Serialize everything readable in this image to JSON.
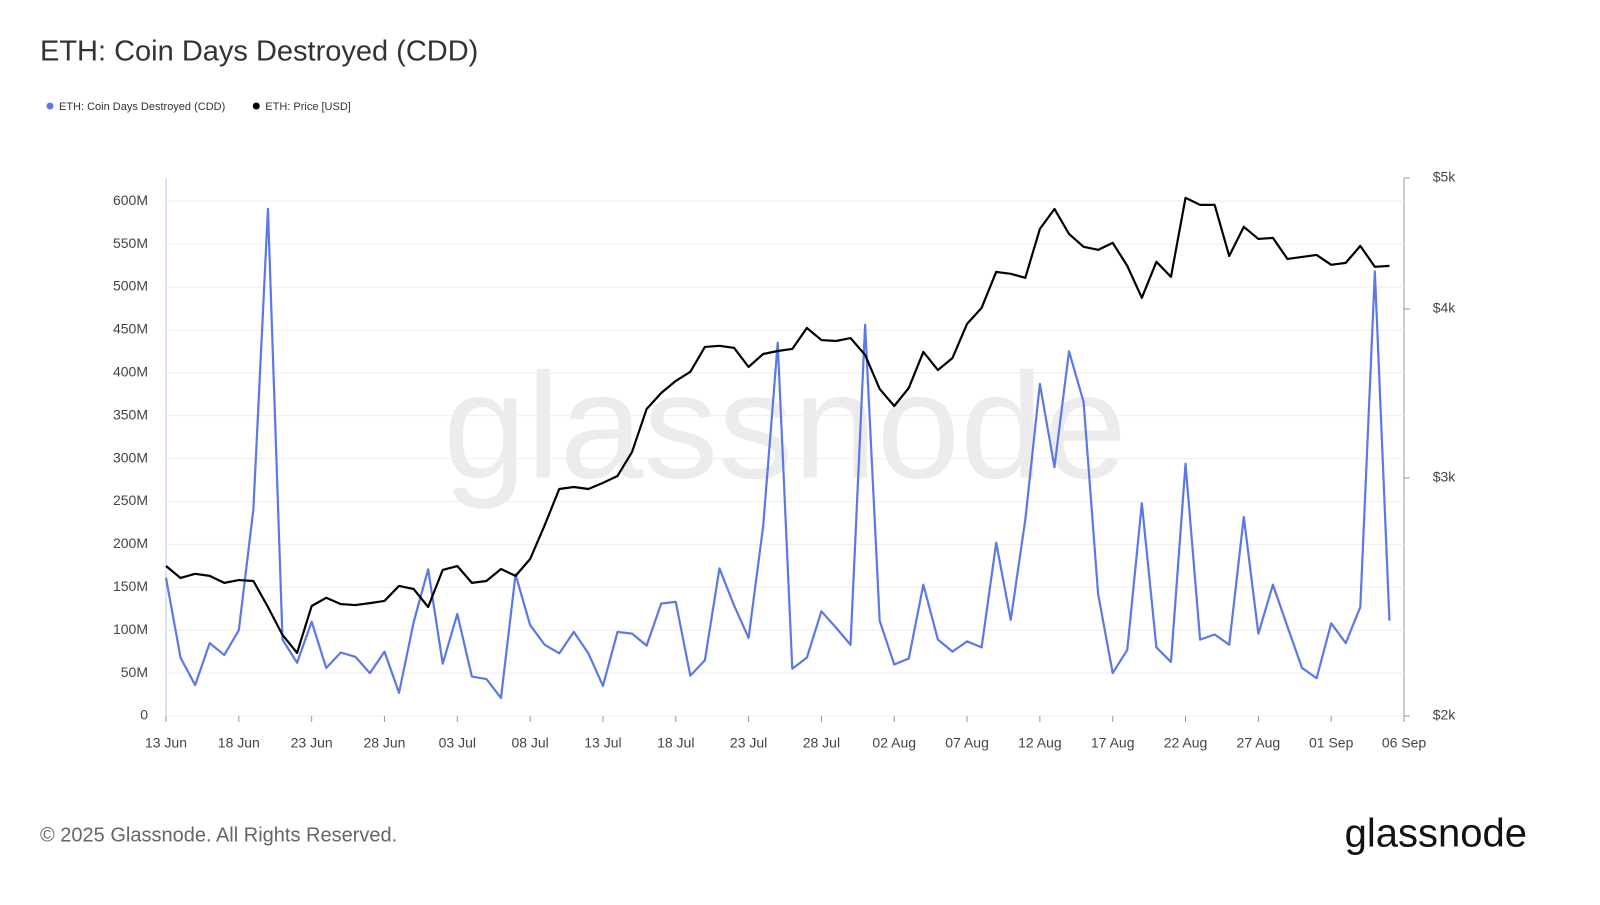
{
  "chart_data": {
    "type": "line",
    "title": "ETH: Coin Days Destroyed (CDD)",
    "x": [
      "13 Jun",
      "14 Jun",
      "15 Jun",
      "16 Jun",
      "17 Jun",
      "18 Jun",
      "19 Jun",
      "20 Jun",
      "21 Jun",
      "22 Jun",
      "23 Jun",
      "24 Jun",
      "25 Jun",
      "26 Jun",
      "27 Jun",
      "28 Jun",
      "29 Jun",
      "30 Jun",
      "01 Jul",
      "02 Jul",
      "03 Jul",
      "04 Jul",
      "05 Jul",
      "06 Jul",
      "07 Jul",
      "08 Jul",
      "09 Jul",
      "10 Jul",
      "11 Jul",
      "12 Jul",
      "13 Jul",
      "14 Jul",
      "15 Jul",
      "16 Jul",
      "17 Jul",
      "18 Jul",
      "19 Jul",
      "20 Jul",
      "21 Jul",
      "22 Jul",
      "23 Jul",
      "24 Jul",
      "25 Jul",
      "26 Jul",
      "27 Jul",
      "28 Jul",
      "29 Jul",
      "30 Jul",
      "31 Jul",
      "01 Aug",
      "02 Aug",
      "03 Aug",
      "04 Aug",
      "05 Aug",
      "06 Aug",
      "07 Aug",
      "08 Aug",
      "09 Aug",
      "10 Aug",
      "11 Aug",
      "12 Aug",
      "13 Aug",
      "14 Aug",
      "15 Aug",
      "16 Aug",
      "17 Aug",
      "18 Aug",
      "19 Aug",
      "20 Aug",
      "21 Aug",
      "22 Aug",
      "23 Aug",
      "24 Aug",
      "25 Aug",
      "26 Aug",
      "27 Aug",
      "28 Aug",
      "29 Aug",
      "30 Aug",
      "31 Aug",
      "01 Sep",
      "02 Sep",
      "03 Sep",
      "04 Sep",
      "05 Sep"
    ],
    "xlim": [
      "13 Jun",
      "06 Sep"
    ],
    "xticks": [
      "13 Jun",
      "18 Jun",
      "23 Jun",
      "28 Jun",
      "03 Jul",
      "08 Jul",
      "13 Jul",
      "18 Jul",
      "23 Jul",
      "28 Jul",
      "02 Aug",
      "07 Aug",
      "12 Aug",
      "17 Aug",
      "22 Aug",
      "27 Aug",
      "01 Sep",
      "06 Sep"
    ],
    "series": [
      {
        "name": "ETH: Coin Days Destroyed (CDD)",
        "color": "#5b78e6",
        "axis": "y",
        "values": [
          161,
          68,
          36,
          85,
          71,
          100,
          241,
          591,
          89,
          62,
          110,
          56,
          74,
          69,
          50,
          75,
          27,
          109,
          171,
          61,
          119,
          46,
          43,
          21,
          165,
          106,
          83,
          73,
          98,
          73,
          35,
          98,
          96,
          82,
          131,
          133,
          47,
          65,
          172,
          129,
          91,
          221,
          435,
          55,
          68,
          122,
          103,
          83,
          456,
          111,
          60,
          67,
          153,
          89,
          75,
          87,
          80,
          202,
          112,
          229,
          387,
          290,
          425,
          366,
          142,
          50,
          77,
          248,
          80,
          63,
          294,
          89,
          95,
          83,
          232,
          96,
          153,
          104,
          56,
          44,
          108,
          85,
          127,
          518,
          111
        ]
      },
      {
        "name": "ETH: Price [USD]",
        "color": "#000000",
        "axis": "y2",
        "values": [
          2582,
          2530,
          2548,
          2539,
          2509,
          2521,
          2517,
          2408,
          2296,
          2227,
          2412,
          2446,
          2420,
          2416,
          2424,
          2433,
          2496,
          2483,
          2408,
          2565,
          2582,
          2509,
          2517,
          2569,
          2539,
          2613,
          2768,
          2944,
          2954,
          2944,
          2975,
          3010,
          3136,
          3374,
          3467,
          3539,
          3594,
          3750,
          3757,
          3744,
          3624,
          3705,
          3724,
          3737,
          3873,
          3794,
          3788,
          3807,
          3699,
          3491,
          3391,
          3497,
          3718,
          3605,
          3680,
          3900,
          4008,
          4261,
          4247,
          4218,
          4585,
          4743,
          4546,
          4447,
          4424,
          4477,
          4305,
          4077,
          4335,
          4225,
          4834,
          4776,
          4776,
          4378,
          4601,
          4507,
          4515,
          4356,
          4371,
          4386,
          4313,
          4327,
          4454,
          4298,
          4305
        ]
      }
    ],
    "ylim": [
      0,
      627
    ],
    "yticks": [
      {
        "value": 0,
        "label": "0"
      },
      {
        "value": 50,
        "label": "50M"
      },
      {
        "value": 100,
        "label": "100M"
      },
      {
        "value": 150,
        "label": "150M"
      },
      {
        "value": 200,
        "label": "200M"
      },
      {
        "value": 250,
        "label": "250M"
      },
      {
        "value": 300,
        "label": "300M"
      },
      {
        "value": 350,
        "label": "350M"
      },
      {
        "value": 400,
        "label": "400M"
      },
      {
        "value": 450,
        "label": "450M"
      },
      {
        "value": 500,
        "label": "500M"
      },
      {
        "value": 550,
        "label": "550M"
      },
      {
        "value": 600,
        "label": "600M"
      }
    ],
    "y2lim": [
      2000,
      5000
    ],
    "y2log": true,
    "y2ticks": [
      {
        "value": 2000,
        "label": "$2k"
      },
      {
        "value": 3000,
        "label": "$3k"
      },
      {
        "value": 4000,
        "label": "$4k"
      },
      {
        "value": 5000,
        "label": "$5k"
      }
    ],
    "grid": true,
    "legend": "top-left",
    "watermark": "glassnode"
  },
  "footer": {
    "copyright": "© 2025 Glassnode. All Rights Reserved.",
    "logo": "glassnode"
  }
}
